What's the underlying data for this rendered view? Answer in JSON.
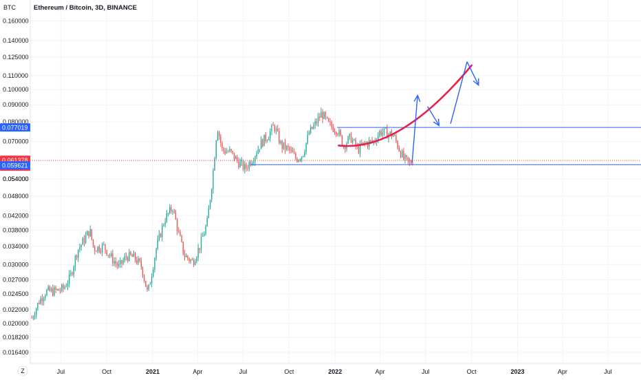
{
  "chart_data": {
    "type": "candlestick",
    "title": "Ethereum / Bitcoin, 3D, BINANCE",
    "currency": "BTC",
    "y_scale": "log",
    "ylim": [
      0.0152,
      0.185
    ],
    "y_ticks": [
      "0.160000",
      "0.140000",
      "0.125000",
      "0.110000",
      "0.100000",
      "0.090000",
      "0.080000",
      "0.070000",
      "0.054000",
      "0.048000",
      "0.042000",
      "0.038000",
      "0.034000",
      "0.030000",
      "0.027000",
      "0.024500",
      "0.022000",
      "0.020000",
      "0.018200",
      "0.016400"
    ],
    "x_start": "2020-05-01",
    "x_end": "2023-09-05",
    "x_ticks": [
      {
        "date": "2020-07-01",
        "label": "Jul",
        "bold": false
      },
      {
        "date": "2020-10-01",
        "label": "Oct",
        "bold": false
      },
      {
        "date": "2021-01-01",
        "label": "2021",
        "bold": true
      },
      {
        "date": "2021-04-01",
        "label": "Apr",
        "bold": false
      },
      {
        "date": "2021-07-01",
        "label": "Jul",
        "bold": false
      },
      {
        "date": "2021-10-01",
        "label": "Oct",
        "bold": false
      },
      {
        "date": "2022-01-01",
        "label": "2022",
        "bold": true
      },
      {
        "date": "2022-04-01",
        "label": "Apr",
        "bold": false
      },
      {
        "date": "2022-07-01",
        "label": "Jul",
        "bold": false
      },
      {
        "date": "2022-10-01",
        "label": "Oct",
        "bold": false
      },
      {
        "date": "2023-01-01",
        "label": "2023",
        "bold": true
      },
      {
        "date": "2023-04-01",
        "label": "Apr",
        "bold": false
      },
      {
        "date": "2023-07-01",
        "label": "Jul",
        "bold": false
      }
    ],
    "closes_anchors": [
      [
        "2020-05-04",
        0.0208
      ],
      [
        "2020-05-20",
        0.0235
      ],
      [
        "2020-06-01",
        0.0249
      ],
      [
        "2020-06-20",
        0.025
      ],
      [
        "2020-07-05",
        0.0253
      ],
      [
        "2020-07-20",
        0.0275
      ],
      [
        "2020-08-03",
        0.033
      ],
      [
        "2020-08-15",
        0.0352
      ],
      [
        "2020-08-28",
        0.038
      ],
      [
        "2020-09-05",
        0.0335
      ],
      [
        "2020-09-25",
        0.034
      ],
      [
        "2020-10-10",
        0.0315
      ],
      [
        "2020-10-25",
        0.0295
      ],
      [
        "2020-11-10",
        0.0318
      ],
      [
        "2020-11-25",
        0.0315
      ],
      [
        "2020-12-10",
        0.0295
      ],
      [
        "2020-12-22",
        0.0245
      ],
      [
        "2021-01-08",
        0.0335
      ],
      [
        "2021-01-25",
        0.041
      ],
      [
        "2021-02-10",
        0.0445
      ],
      [
        "2021-02-22",
        0.037
      ],
      [
        "2021-03-05",
        0.032
      ],
      [
        "2021-03-22",
        0.0305
      ],
      [
        "2021-04-05",
        0.034
      ],
      [
        "2021-04-20",
        0.04
      ],
      [
        "2021-05-01",
        0.055
      ],
      [
        "2021-05-10",
        0.078
      ],
      [
        "2021-05-20",
        0.066
      ],
      [
        "2021-06-05",
        0.065
      ],
      [
        "2021-06-20",
        0.061
      ],
      [
        "2021-07-05",
        0.058
      ],
      [
        "2021-07-22",
        0.063
      ],
      [
        "2021-08-05",
        0.069
      ],
      [
        "2021-08-20",
        0.073
      ],
      [
        "2021-09-01",
        0.078
      ],
      [
        "2021-09-15",
        0.068
      ],
      [
        "2021-10-01",
        0.066
      ],
      [
        "2021-10-15",
        0.062
      ],
      [
        "2021-10-28",
        0.064
      ],
      [
        "2021-11-10",
        0.074
      ],
      [
        "2021-11-25",
        0.08
      ],
      [
        "2021-12-05",
        0.085
      ],
      [
        "2021-12-20",
        0.078
      ],
      [
        "2022-01-05",
        0.076
      ],
      [
        "2022-01-18",
        0.068
      ],
      [
        "2022-02-01",
        0.072
      ],
      [
        "2022-02-15",
        0.066
      ],
      [
        "2022-03-01",
        0.069
      ],
      [
        "2022-03-20",
        0.07
      ],
      [
        "2022-04-01",
        0.075
      ],
      [
        "2022-04-15",
        0.074
      ],
      [
        "2022-04-28",
        0.073
      ],
      [
        "2022-05-08",
        0.067
      ],
      [
        "2022-05-18",
        0.062
      ],
      [
        "2022-05-30",
        0.06
      ],
      [
        "2022-06-05",
        0.06138
      ]
    ],
    "price_markers": [
      {
        "price": 0.077019,
        "label": "0.077019",
        "color": "#2962ff"
      },
      {
        "price": 0.061378,
        "label": "0.061378",
        "sublabel": "21:00:32",
        "color": "#f23645"
      },
      {
        "price": 0.059621,
        "label": "0.059621",
        "color": "#2962ff"
      }
    ],
    "covered_tick_label": "0.054000",
    "annotations": {
      "resistance_line": {
        "price": 0.077019,
        "from": "2022-01-05",
        "color": "#2962ff"
      },
      "support_line": {
        "price": 0.059621,
        "from": "2021-07-15",
        "color": "#2962ff"
      },
      "arc": {
        "from": [
          "2022-01-08",
          0.068
        ],
        "control": [
          "2022-05-10",
          0.065
        ],
        "to": [
          "2022-10-01",
          0.118
        ],
        "color": "#e91e4a"
      },
      "arrows": [
        {
          "path": [
            [
              "2022-06-04",
              0.0605
            ],
            [
              "2022-06-15",
              0.096
            ]
          ],
          "head": true
        },
        {
          "path": [
            [
              "2022-07-05",
              0.089
            ],
            [
              "2022-07-28",
              0.078
            ]
          ],
          "head": true
        },
        {
          "path": [
            [
              "2022-08-20",
              0.079
            ],
            [
              "2022-09-22",
              0.121
            ]
          ],
          "head": false
        },
        {
          "path": [
            [
              "2022-09-22",
              0.121
            ],
            [
              "2022-10-15",
              0.103
            ]
          ],
          "head": true
        }
      ],
      "arrow_color": "#2962ff"
    },
    "colors": {
      "up": "#26a69a",
      "down": "#ef5350",
      "grid": "#f0f3fa",
      "axis": "#e0e3eb"
    },
    "xlabel": "",
    "ylabel": ""
  },
  "corner_icon": "Z"
}
